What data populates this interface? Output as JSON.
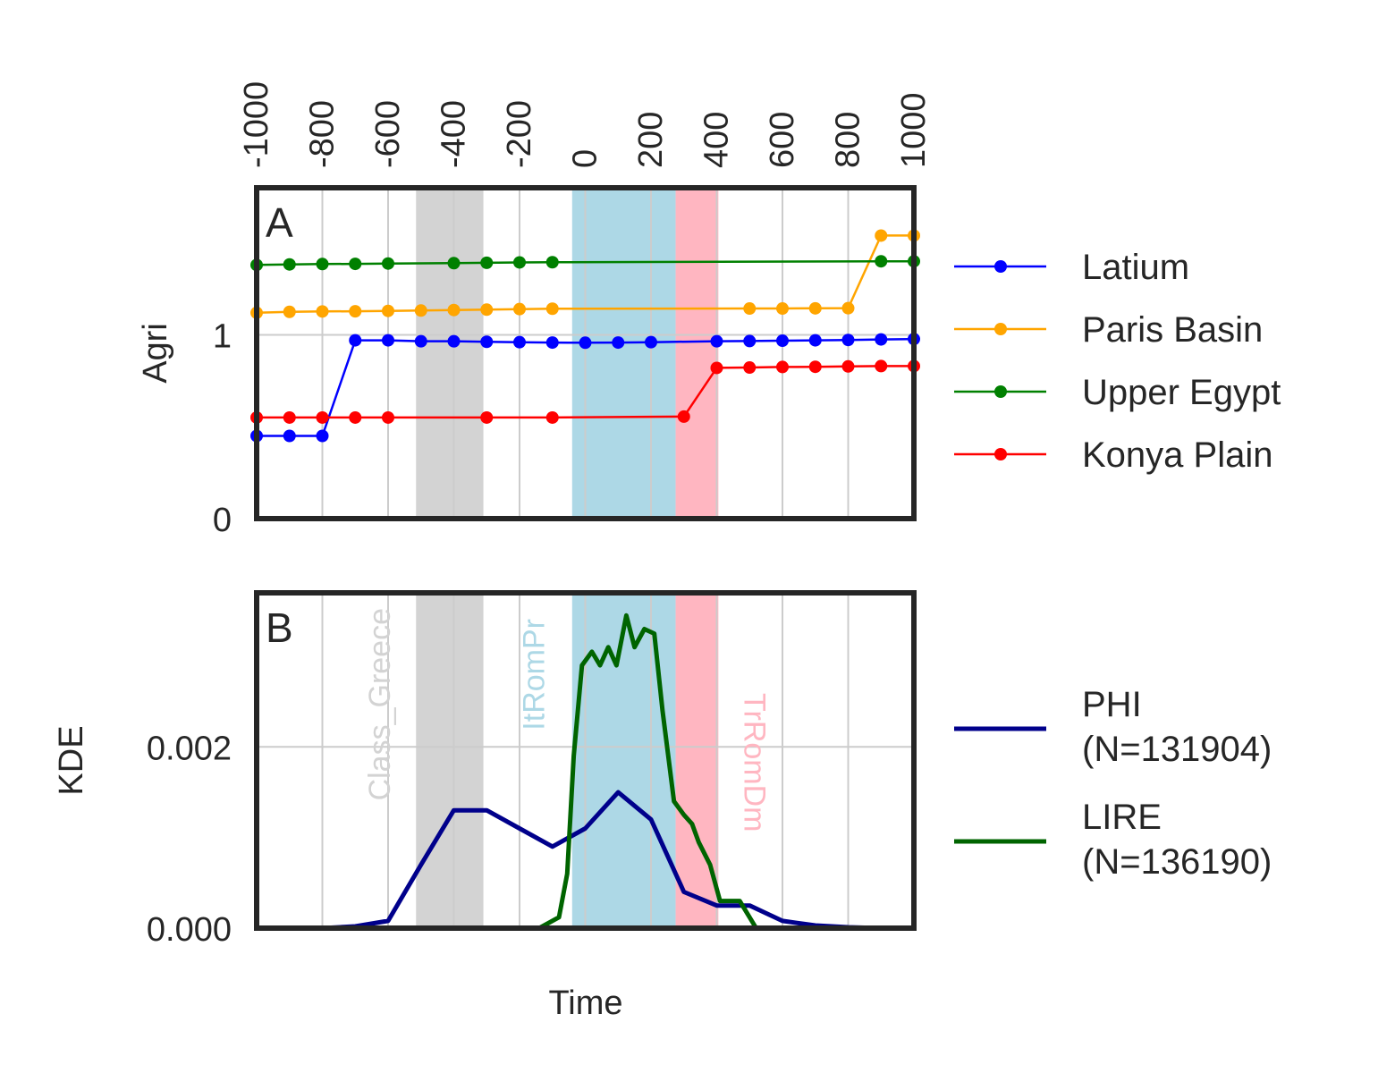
{
  "chart_data": [
    {
      "panel_label": "A",
      "type": "line",
      "ylabel": "Agri",
      "xlim": [
        -1000,
        1000
      ],
      "ylim": [
        0,
        1.8
      ],
      "x_ticks": [
        -1000,
        -800,
        -600,
        -400,
        -200,
        0,
        200,
        400,
        600,
        800,
        1000
      ],
      "x_tick_labels": [
        "-1000",
        "-800",
        "-600",
        "-400",
        "-200",
        "0",
        "200",
        "400",
        "600",
        "800",
        "1000"
      ],
      "x_ticks_position": "top",
      "y_ticks": [
        0,
        1
      ],
      "y_tick_labels": [
        "0",
        "1"
      ],
      "grid": true,
      "legend_position": "right",
      "shaded_periods": [
        {
          "from": -515,
          "to": -310,
          "color": "#d3d3d3"
        },
        {
          "from": -40,
          "to": 275,
          "color": "#add8e6"
        },
        {
          "from": 275,
          "to": 405,
          "color": "#ffb6c1"
        }
      ],
      "series": [
        {
          "name": "Latium",
          "color": "#0000ff",
          "x": [
            -1000,
            -900,
            -800,
            -700,
            -600,
            -500,
            -400,
            -300,
            -200,
            -100,
            0,
            100,
            200,
            400,
            500,
            600,
            700,
            800,
            900,
            1000
          ],
          "y": [
            0.45,
            0.45,
            0.45,
            0.97,
            0.97,
            0.965,
            0.965,
            0.962,
            0.96,
            0.958,
            0.957,
            0.958,
            0.96,
            0.965,
            0.966,
            0.968,
            0.97,
            0.972,
            0.975,
            0.977
          ]
        },
        {
          "name": "Paris Basin",
          "color": "#ffa500",
          "x": [
            -1000,
            -900,
            -800,
            -700,
            -600,
            -500,
            -400,
            -300,
            -200,
            -100,
            500,
            600,
            700,
            800,
            900,
            1000
          ],
          "y": [
            1.12,
            1.125,
            1.127,
            1.128,
            1.13,
            1.132,
            1.135,
            1.137,
            1.14,
            1.142,
            1.143,
            1.143,
            1.144,
            1.145,
            1.54,
            1.54
          ]
        },
        {
          "name": "Upper Egypt",
          "color": "#008000",
          "x": [
            -1000,
            -900,
            -800,
            -700,
            -600,
            -400,
            -300,
            -200,
            -100,
            900,
            1000
          ],
          "y": [
            1.38,
            1.383,
            1.385,
            1.386,
            1.388,
            1.39,
            1.392,
            1.394,
            1.395,
            1.4,
            1.4
          ]
        },
        {
          "name": "Konya Plain",
          "color": "#ff0000",
          "x": [
            -1000,
            -900,
            -800,
            -700,
            -600,
            -300,
            -100,
            300,
            400,
            500,
            600,
            700,
            800,
            900,
            1000
          ],
          "y": [
            0.55,
            0.55,
            0.55,
            0.55,
            0.55,
            0.55,
            0.55,
            0.555,
            0.82,
            0.822,
            0.825,
            0.826,
            0.828,
            0.83,
            0.83
          ]
        }
      ]
    },
    {
      "panel_label": "B",
      "type": "line",
      "xlabel": "Time",
      "ylabel": "KDE",
      "xlim": [
        -1000,
        1000
      ],
      "ylim": [
        0,
        0.0037
      ],
      "y_ticks": [
        0,
        0.002
      ],
      "y_tick_labels": [
        "0.000",
        "0.002"
      ],
      "grid": true,
      "legend_position": "right",
      "shaded_periods": [
        {
          "from": -515,
          "to": -310,
          "color": "#d3d3d3",
          "label": "Class_Greece"
        },
        {
          "from": -40,
          "to": 275,
          "color": "#add8e6",
          "label": "ItRomPr"
        },
        {
          "from": 275,
          "to": 405,
          "color": "#ffb6c1",
          "label": "TrRomDm"
        }
      ],
      "series": [
        {
          "name": "PHI",
          "legend_lines": [
            "PHI",
            "(N=131904)"
          ],
          "color": "#00008b",
          "x": [
            -1000,
            -900,
            -800,
            -700,
            -600,
            -500,
            -400,
            -300,
            -200,
            -100,
            0,
            100,
            200,
            300,
            400,
            500,
            600,
            700,
            800,
            900,
            1000
          ],
          "y": [
            0.0,
            0.0,
            0.0,
            2e-05,
            8e-05,
            0.0007,
            0.0013,
            0.0013,
            0.0011,
            0.0009,
            0.0011,
            0.0015,
            0.0012,
            0.0004,
            0.00025,
            0.00025,
            8e-05,
            3e-05,
            1e-05,
            0.0,
            0.0
          ]
        },
        {
          "name": "LIRE",
          "legend_lines": [
            "LIRE",
            "(N=136190)"
          ],
          "color": "#006400",
          "x": [
            -320,
            -200,
            -140,
            -80,
            -55,
            -35,
            -10,
            20,
            45,
            70,
            95,
            125,
            150,
            180,
            210,
            235,
            270,
            300,
            325,
            345,
            380,
            410,
            470,
            520,
            1000
          ],
          "y": [
            0.0,
            0.0,
            0.0,
            0.00012,
            0.0006,
            0.0019,
            0.0029,
            0.00305,
            0.0029,
            0.0031,
            0.0029,
            0.00345,
            0.0031,
            0.0033,
            0.00325,
            0.0024,
            0.0014,
            0.00125,
            0.00115,
            0.00095,
            0.0007,
            0.0003,
            0.0003,
            0.0,
            0.0
          ]
        }
      ]
    }
  ]
}
